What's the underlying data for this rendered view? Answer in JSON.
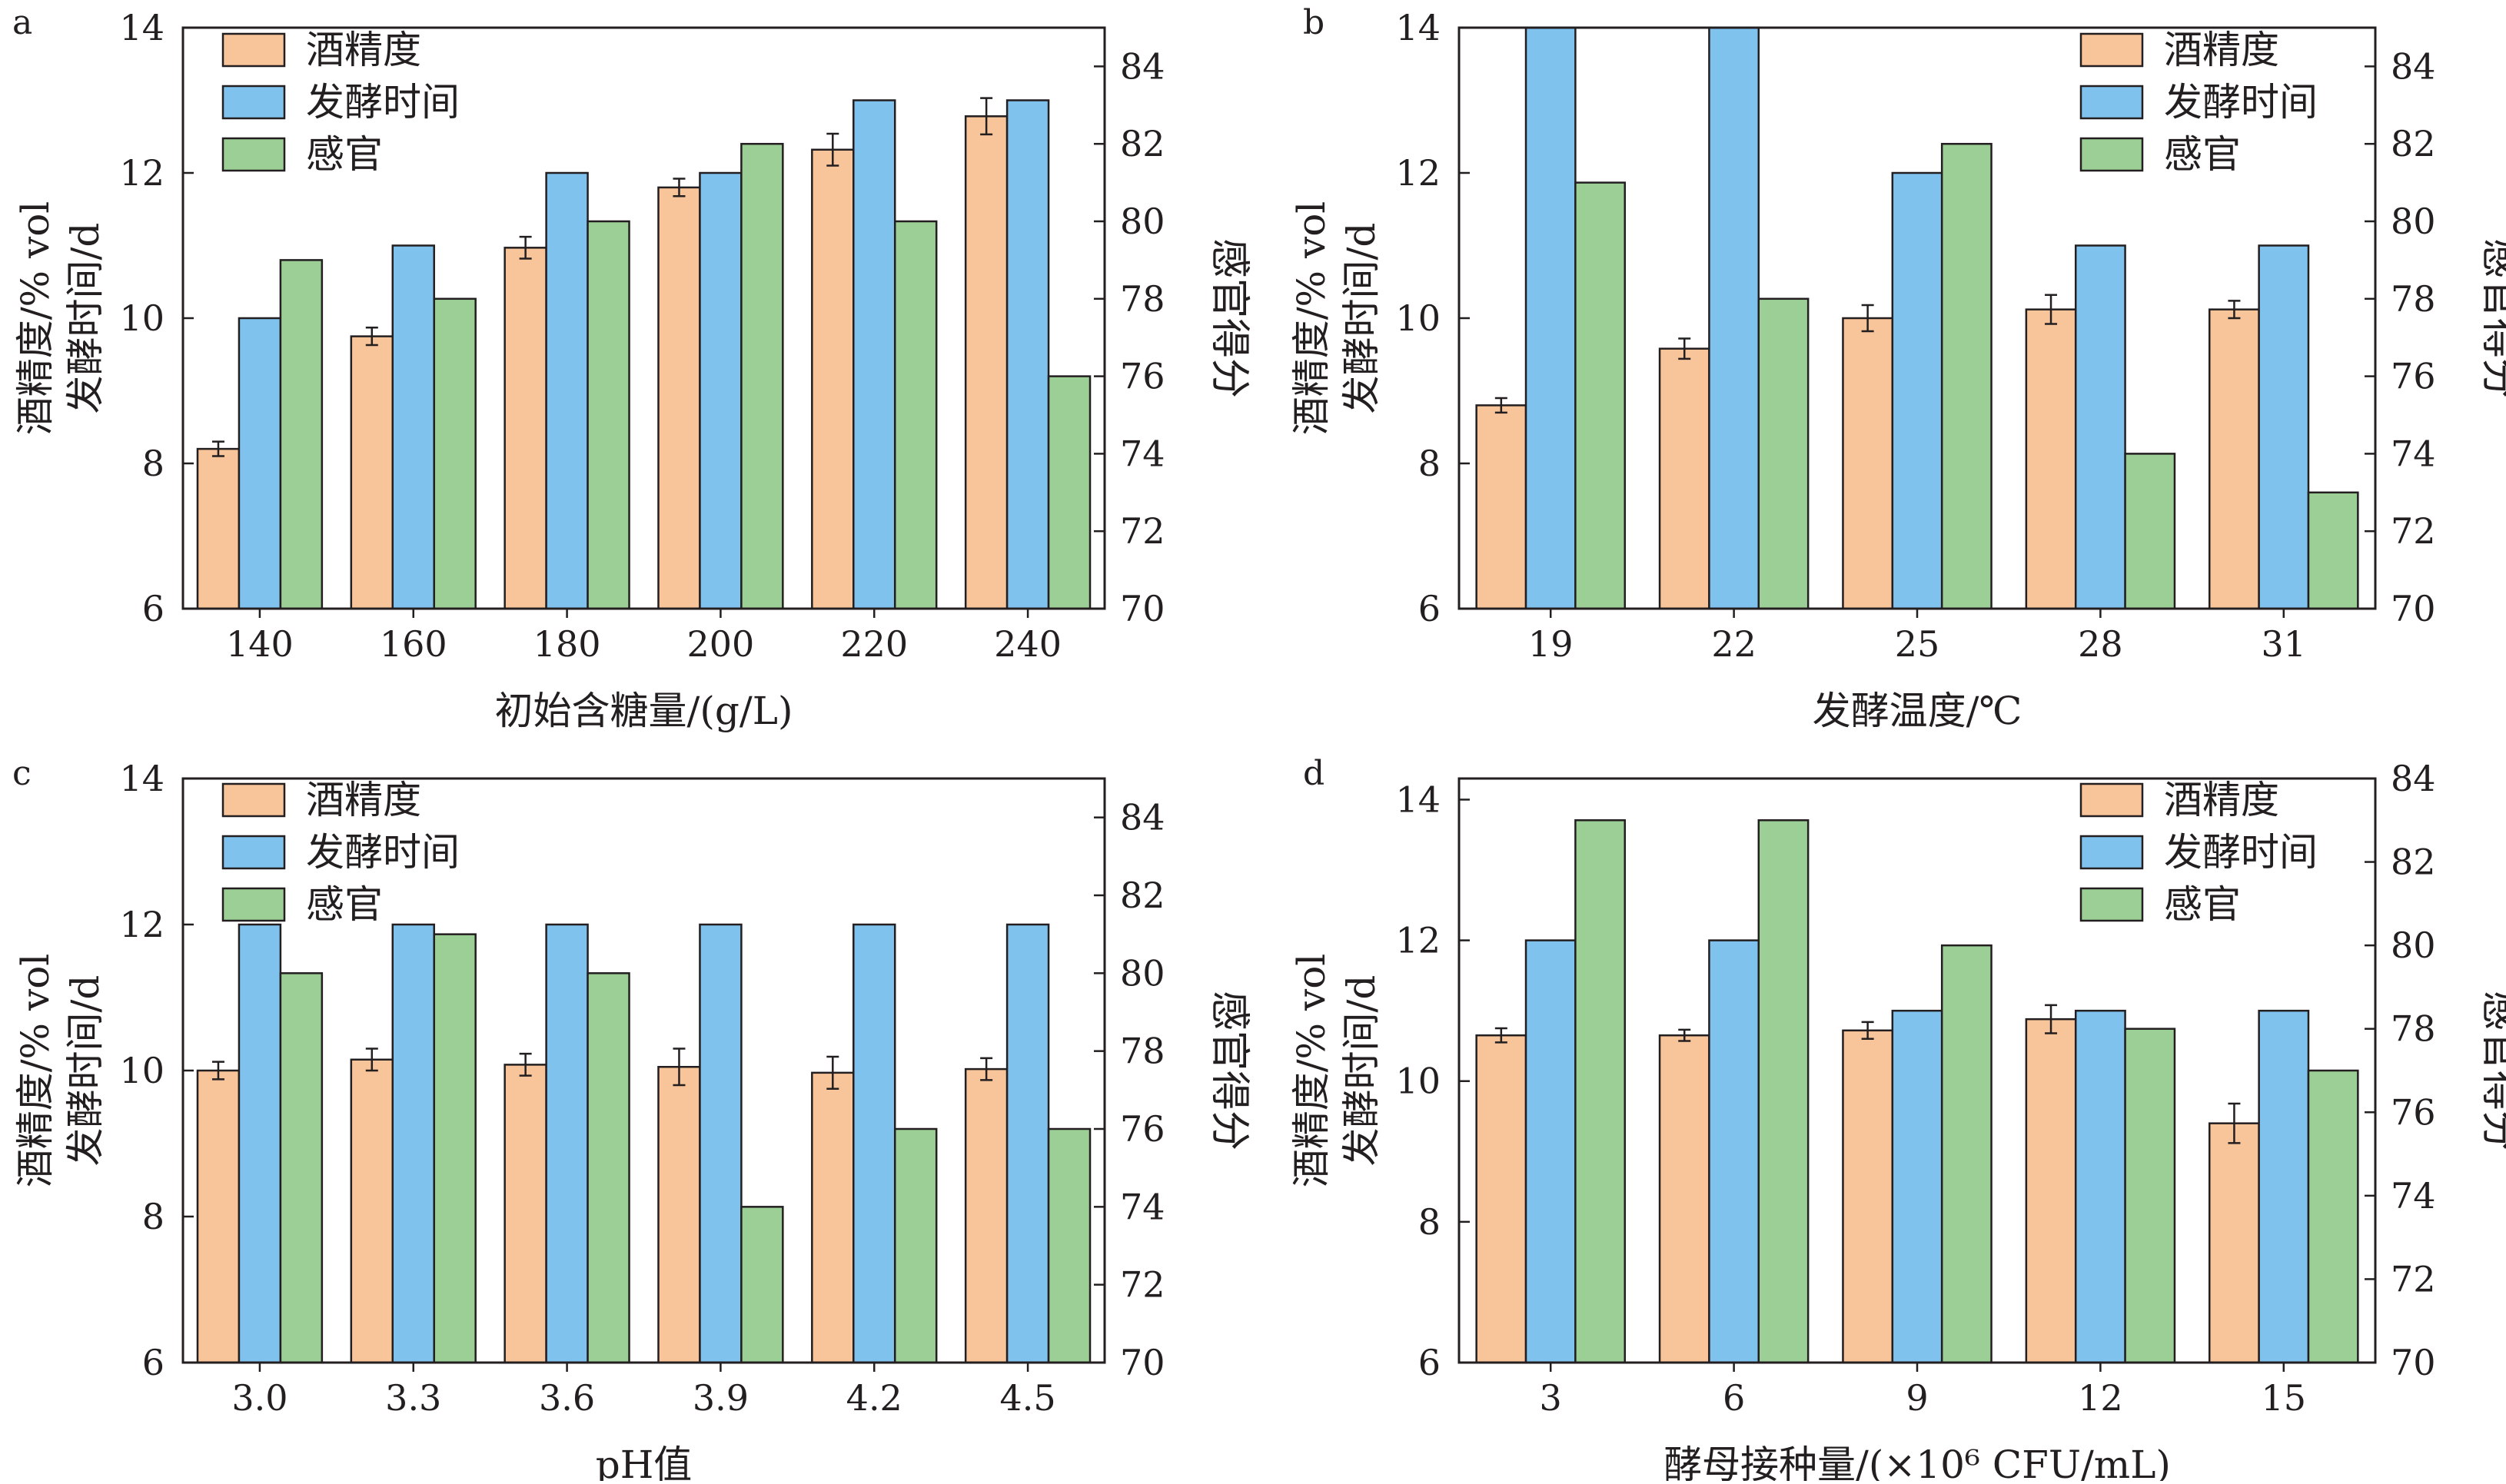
{
  "colors": {
    "alcohol": "#f8c499",
    "time": "#80c2ee",
    "sensory": "#9ccf96",
    "axis": "#231f20",
    "error": "#231f20"
  },
  "chart_data": [
    {
      "panel": "a",
      "type": "bar",
      "categories": [
        "140",
        "160",
        "180",
        "200",
        "220",
        "240"
      ],
      "xlabel": "初始含糖量/(g/L)",
      "ylabel_left_1": "酒精度/% vol",
      "ylabel_left_2": "发酵时间/d",
      "ylabel_right": "感官得分",
      "ylim_left": [
        6,
        14
      ],
      "yticks_left": [
        "6",
        "8",
        "10",
        "12",
        "14"
      ],
      "ylim_right": [
        70,
        85
      ],
      "yticks_right": [
        "70",
        "72",
        "74",
        "76",
        "78",
        "80",
        "82",
        "84"
      ],
      "legend_position": "top-left",
      "series": [
        {
          "name": "酒精度",
          "axis": "left",
          "values": [
            8.2,
            9.75,
            10.97,
            11.8,
            12.32,
            12.78
          ],
          "errors": [
            0.1,
            0.12,
            0.15,
            0.12,
            0.22,
            0.25
          ]
        },
        {
          "name": "发酵时间",
          "axis": "left",
          "values": [
            10,
            11,
            12,
            12,
            13,
            13
          ],
          "errors": []
        },
        {
          "name": "感官",
          "axis": "right",
          "values": [
            79,
            78,
            80,
            82,
            80,
            76
          ],
          "errors": []
        }
      ]
    },
    {
      "panel": "b",
      "type": "bar",
      "categories": [
        "19",
        "22",
        "25",
        "28",
        "31"
      ],
      "xlabel": "发酵温度/℃",
      "ylabel_left_1": "酒精度/% vol",
      "ylabel_left_2": "发酵时间/d",
      "ylabel_right": "感官得分",
      "ylim_left": [
        6,
        14
      ],
      "yticks_left": [
        "6",
        "8",
        "10",
        "12",
        "14"
      ],
      "ylim_right": [
        70,
        85
      ],
      "yticks_right": [
        "70",
        "72",
        "74",
        "76",
        "78",
        "80",
        "82",
        "84"
      ],
      "legend_position": "top-right",
      "series": [
        {
          "name": "酒精度",
          "axis": "left",
          "values": [
            8.8,
            9.58,
            10.0,
            10.12,
            10.12
          ],
          "errors": [
            0.1,
            0.14,
            0.18,
            0.2,
            0.12
          ]
        },
        {
          "name": "发酵时间",
          "axis": "left",
          "values": [
            14,
            14,
            12,
            11,
            11
          ],
          "errors": []
        },
        {
          "name": "感官",
          "axis": "right",
          "values": [
            81,
            78,
            82,
            74,
            73
          ],
          "errors": []
        }
      ]
    },
    {
      "panel": "c",
      "type": "bar",
      "categories": [
        "3.0",
        "3.3",
        "3.6",
        "3.9",
        "4.2",
        "4.5"
      ],
      "xlabel": "pH值",
      "ylabel_left_1": "酒精度/% vol",
      "ylabel_left_2": "发酵时间/d",
      "ylabel_right": "感官得分",
      "ylim_left": [
        6,
        14
      ],
      "yticks_left": [
        "6",
        "8",
        "10",
        "12",
        "14"
      ],
      "ylim_right": [
        70,
        85
      ],
      "yticks_right": [
        "70",
        "72",
        "74",
        "76",
        "78",
        "80",
        "82",
        "84"
      ],
      "legend_position": "top-left",
      "series": [
        {
          "name": "酒精度",
          "axis": "left",
          "values": [
            10.0,
            10.15,
            10.08,
            10.05,
            9.97,
            10.02
          ],
          "errors": [
            0.12,
            0.15,
            0.15,
            0.25,
            0.22,
            0.15
          ]
        },
        {
          "name": "发酵时间",
          "axis": "left",
          "values": [
            12,
            12,
            12,
            12,
            12,
            12
          ],
          "errors": []
        },
        {
          "name": "感官",
          "axis": "right",
          "values": [
            80,
            81,
            80,
            74,
            76,
            76
          ],
          "errors": []
        }
      ]
    },
    {
      "panel": "d",
      "type": "bar",
      "categories": [
        "3",
        "6",
        "9",
        "12",
        "15"
      ],
      "xlabel": "酵母接种量/(×10⁶ CFU/mL)",
      "ylabel_left_1": "酒精度/% vol",
      "ylabel_left_2": "发酵时间/d",
      "ylabel_right": "感官得分",
      "ylim_left": [
        6,
        14.3
      ],
      "yticks_left": [
        "6",
        "8",
        "10",
        "12",
        "14"
      ],
      "ylim_right": [
        70,
        84
      ],
      "yticks_right": [
        "70",
        "72",
        "74",
        "76",
        "78",
        "80",
        "82",
        "84"
      ],
      "legend_position": "top-right",
      "series": [
        {
          "name": "酒精度",
          "axis": "left",
          "values": [
            10.65,
            10.65,
            10.72,
            10.88,
            9.4
          ],
          "errors": [
            0.1,
            0.08,
            0.12,
            0.2,
            0.28
          ]
        },
        {
          "name": "发酵时间",
          "axis": "left",
          "values": [
            12,
            12,
            11,
            11,
            11
          ],
          "errors": []
        },
        {
          "name": "感官",
          "axis": "right",
          "values": [
            83,
            83,
            80,
            78,
            77
          ],
          "errors": []
        }
      ]
    }
  ]
}
